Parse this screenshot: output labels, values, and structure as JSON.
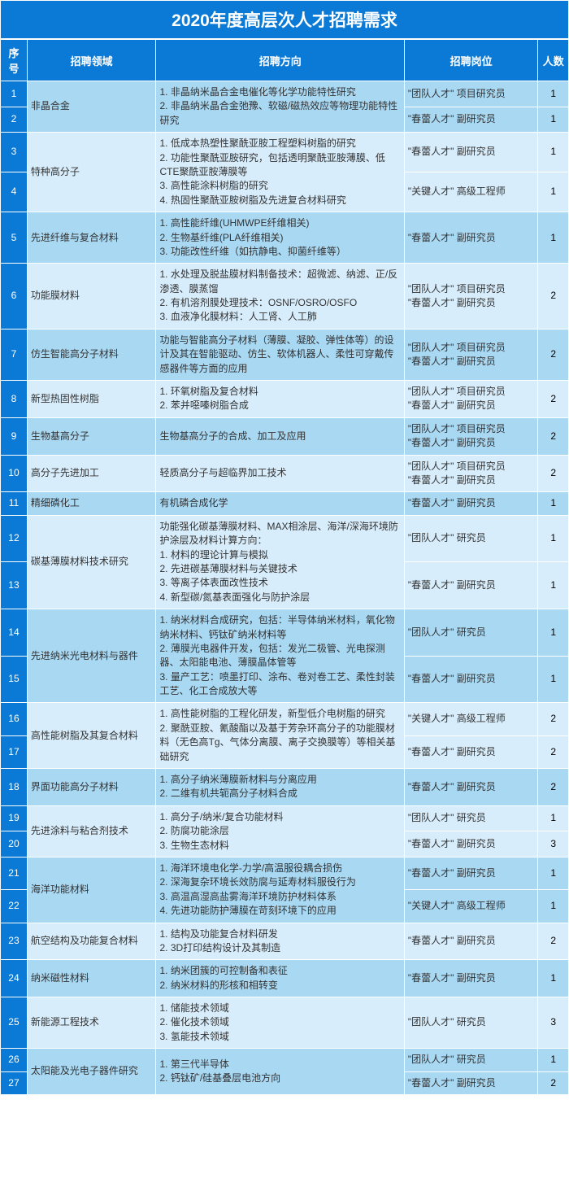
{
  "title": "2020年度高层次人才招聘需求",
  "headers": {
    "seq": "序号",
    "field": "招聘领域",
    "direction": "招聘方向",
    "position": "招聘岗位",
    "count": "人数"
  },
  "rows": [
    {
      "seq": "1",
      "band": "a",
      "field": "非晶合金",
      "fieldSpan": 2,
      "dir": "1. 非晶纳米晶合金电催化等化学功能特性研究\n2. 非晶纳米晶合金弛豫、软磁/磁热效应等物理功能特性研究",
      "dirSpan": 2,
      "pos": "\"团队人才\" 项目研究员",
      "cnt": "1"
    },
    {
      "seq": "2",
      "band": "a",
      "pos": "\"春蕾人才\" 副研究员",
      "cnt": "1"
    },
    {
      "seq": "3",
      "band": "b",
      "field": "特种高分子",
      "fieldSpan": 2,
      "dir": "1. 低成本热塑性聚酰亚胺工程塑料树脂的研究\n2. 功能性聚酰亚胺研究，包括透明聚酰亚胺薄膜、低CTE聚酰亚胺薄膜等\n3. 高性能涂料树脂的研究\n4. 热固性聚酰亚胺树脂及先进复合材料研究",
      "dirSpan": 2,
      "pos": "\"春蕾人才\" 副研究员",
      "cnt": "1"
    },
    {
      "seq": "4",
      "band": "b",
      "pos": "\"关键人才\" 高级工程师",
      "cnt": "1"
    },
    {
      "seq": "5",
      "band": "a",
      "field": "先进纤维与复合材料",
      "fieldSpan": 1,
      "dir": "1. 高性能纤维(UHMWPE纤维相关)\n2. 生物基纤维(PLA纤维相关)\n3. 功能改性纤维（如抗静电、抑菌纤维等）",
      "dirSpan": 1,
      "pos": "\"春蕾人才\" 副研究员",
      "cnt": "1"
    },
    {
      "seq": "6",
      "band": "b",
      "field": "功能膜材料",
      "fieldSpan": 1,
      "dir": "1. 水处理及脱盐膜材料制备技术：超微滤、纳滤、正/反渗透、膜蒸馏\n2. 有机溶剂膜处理技术：OSNF/OSRO/OSFO\n3. 血液净化膜材料：人工肾、人工肺",
      "dirSpan": 1,
      "pos": "\"团队人才\" 项目研究员\n\"春蕾人才\" 副研究员",
      "cnt": "2"
    },
    {
      "seq": "7",
      "band": "a",
      "field": "仿生智能高分子材料",
      "fieldSpan": 1,
      "dir": "功能与智能高分子材料（薄膜、凝胶、弹性体等）的设计及其在智能驱动、仿生、软体机器人、柔性可穿戴传感器件等方面的应用",
      "dirSpan": 1,
      "pos": "\"团队人才\" 项目研究员\n\"春蕾人才\" 副研究员",
      "cnt": "2"
    },
    {
      "seq": "8",
      "band": "b",
      "field": "新型热固性树脂",
      "fieldSpan": 1,
      "dir": "1. 环氧树脂及复合材料\n2. 苯并噁嗪树脂合成",
      "dirSpan": 1,
      "pos": "\"团队人才\" 项目研究员\n\"春蕾人才\" 副研究员",
      "cnt": "2"
    },
    {
      "seq": "9",
      "band": "a",
      "field": "生物基高分子",
      "fieldSpan": 1,
      "dir": "生物基高分子的合成、加工及应用",
      "dirSpan": 1,
      "pos": "\"团队人才\" 项目研究员\n\"春蕾人才\" 副研究员",
      "cnt": "2"
    },
    {
      "seq": "10",
      "band": "b",
      "field": "高分子先进加工",
      "fieldSpan": 1,
      "dir": "轻质高分子与超临界加工技术",
      "dirSpan": 1,
      "pos": "\"团队人才\" 项目研究员\n\"春蕾人才\" 副研究员",
      "cnt": "2"
    },
    {
      "seq": "11",
      "band": "a",
      "field": "精细磷化工",
      "fieldSpan": 1,
      "dir": "有机磷合成化学",
      "dirSpan": 1,
      "pos": "\"春蕾人才\" 副研究员",
      "cnt": "1"
    },
    {
      "seq": "12",
      "band": "b",
      "field": "碳基薄膜材料技术研究",
      "fieldSpan": 2,
      "dir": "功能强化碳基薄膜材料、MAX相涂层、海洋/深海环境防护涂层及材料计算方向：\n1. 材料的理论计算与模拟\n2. 先进碳基薄膜材料与关键技术\n3. 等离子体表面改性技术\n4. 新型碳/氮基表面强化与防护涂层",
      "dirSpan": 2,
      "pos": "\"团队人才\" 研究员",
      "cnt": "1"
    },
    {
      "seq": "13",
      "band": "b",
      "pos": "\"春蕾人才\" 副研究员",
      "cnt": "1"
    },
    {
      "seq": "14",
      "band": "a",
      "field": "先进纳米光电材料与器件",
      "fieldSpan": 2,
      "dir": "1. 纳米材料合成研究，包括：半导体纳米材料，氧化物纳米材料、钙钛矿纳米材料等\n2. 薄膜光电器件开发，包括：发光二极管、光电探测器、太阳能电池、薄膜晶体管等\n3. 量产工艺：喷墨打印、涂布、卷对卷工艺、柔性封装工艺、化工合成放大等",
      "dirSpan": 2,
      "pos": "\"团队人才\" 研究员",
      "cnt": "1"
    },
    {
      "seq": "15",
      "band": "a",
      "pos": "\"春蕾人才\" 副研究员",
      "cnt": "1"
    },
    {
      "seq": "16",
      "band": "b",
      "field": "高性能树脂及其复合材料",
      "fieldSpan": 2,
      "dir": "1. 高性能树脂的工程化研发，新型低介电树脂的研究\n2. 聚酰亚胺、氰酸酯以及基于芳杂环高分子的功能膜材料（无色高Tg、气体分离膜、离子交换膜等）等相关基础研究",
      "dirSpan": 2,
      "pos": "\"关键人才\" 高级工程师",
      "cnt": "2"
    },
    {
      "seq": "17",
      "band": "b",
      "pos": "\"春蕾人才\" 副研究员",
      "cnt": "2"
    },
    {
      "seq": "18",
      "band": "a",
      "field": "界面功能高分子材料",
      "fieldSpan": 1,
      "dir": "1. 高分子纳米薄膜新材料与分离应用\n2. 二维有机共轭高分子材料合成",
      "dirSpan": 1,
      "pos": "\"春蕾人才\" 副研究员",
      "cnt": "2"
    },
    {
      "seq": "19",
      "band": "b",
      "field": "先进涂料与粘合剂技术",
      "fieldSpan": 2,
      "dir": "1. 高分子/纳米/复合功能材料\n2. 防腐功能涂层\n3. 生物生态材料",
      "dirSpan": 2,
      "pos": "\"团队人才\" 研究员",
      "cnt": "1"
    },
    {
      "seq": "20",
      "band": "b",
      "pos": "\"春蕾人才\" 副研究员",
      "cnt": "3"
    },
    {
      "seq": "21",
      "band": "a",
      "field": "海洋功能材料",
      "fieldSpan": 2,
      "dir": "1. 海洋环境电化学-力学/高温服役耦合损伤\n2. 深海复杂环境长效防腐与延寿材料服役行为\n3. 高温高湿高盐雾海洋环境防护材料体系\n4. 先进功能防护薄膜在苛刻环境下的应用",
      "dirSpan": 2,
      "pos": "\"春蕾人才\" 副研究员",
      "cnt": "1"
    },
    {
      "seq": "22",
      "band": "a",
      "pos": "\"关键人才\" 高级工程师",
      "cnt": "1"
    },
    {
      "seq": "23",
      "band": "b",
      "field": "航空结构及功能复合材料",
      "fieldSpan": 1,
      "dir": "1. 结构及功能复合材料研发\n2. 3D打印结构设计及其制造",
      "dirSpan": 1,
      "pos": "\"春蕾人才\" 副研究员",
      "cnt": "2"
    },
    {
      "seq": "24",
      "band": "a",
      "field": "纳米磁性材料",
      "fieldSpan": 1,
      "dir": "1. 纳米团簇的可控制备和表征\n2. 纳米材料的形核和相转变",
      "dirSpan": 1,
      "pos": "\"春蕾人才\" 副研究员",
      "cnt": "1"
    },
    {
      "seq": "25",
      "band": "b",
      "field": "新能源工程技术",
      "fieldSpan": 1,
      "dir": "1. 储能技术领域\n2. 催化技术领域\n3. 氢能技术领域",
      "dirSpan": 1,
      "pos": "\"团队人才\" 研究员",
      "cnt": "3"
    },
    {
      "seq": "26",
      "band": "a",
      "field": "太阳能及光电子器件研究",
      "fieldSpan": 2,
      "dir": "1. 第三代半导体\n2. 钙钛矿/硅基叠层电池方向",
      "dirSpan": 2,
      "pos": "\"团队人才\" 研究员",
      "cnt": "1"
    },
    {
      "seq": "27",
      "band": "a",
      "pos": "\"春蕾人才\" 副研究员",
      "cnt": "2"
    }
  ]
}
